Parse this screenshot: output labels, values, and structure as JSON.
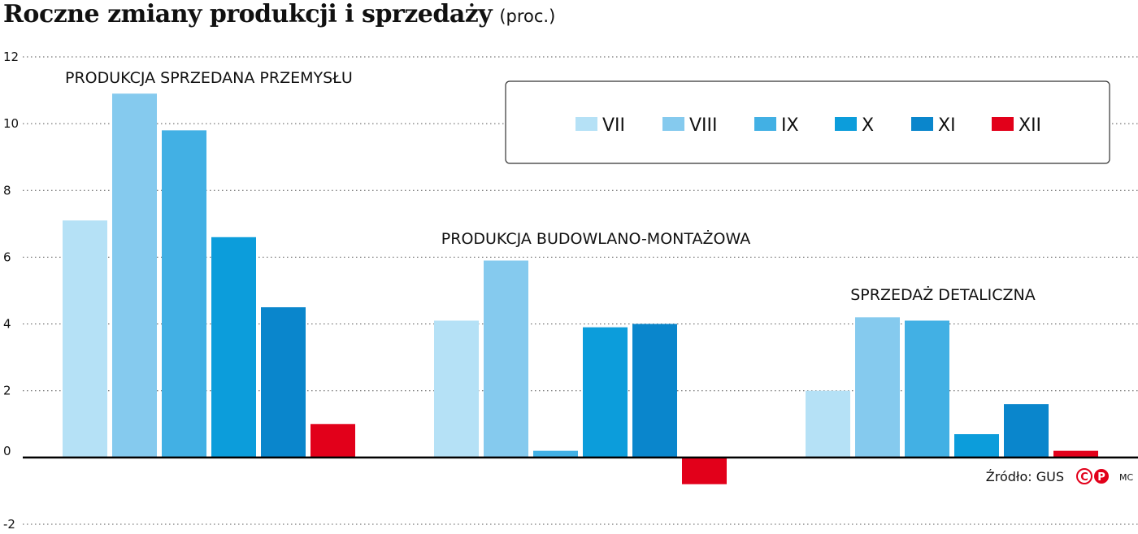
{
  "title": "Roczne zmiany produkcji i sprzedaży",
  "title_unit": "(proc.)",
  "source": "Źródło: GUS",
  "author": "MC",
  "logo_letters": [
    "C",
    "P"
  ],
  "chart_data": {
    "type": "bar",
    "categories": [
      "PRODUKCJA SPRZEDANA PRZEMYSŁU",
      "PRODUKCJA BUDOWLANO-MONTAŻOWA",
      "SPRZEDAŻ DETALICZNA"
    ],
    "series": [
      {
        "name": "VII",
        "color": "#b5e1f6",
        "values": [
          7.1,
          4.1,
          2.0
        ]
      },
      {
        "name": "VIII",
        "color": "#85caee",
        "values": [
          10.9,
          5.9,
          4.2
        ]
      },
      {
        "name": "IX",
        "color": "#42b0e4",
        "values": [
          9.8,
          0.2,
          4.1
        ]
      },
      {
        "name": "X",
        "color": "#0c9ddb",
        "values": [
          6.6,
          3.9,
          0.7
        ]
      },
      {
        "name": "XI",
        "color": "#0a86cc",
        "values": [
          4.5,
          4.0,
          1.6
        ]
      },
      {
        "name": "XII",
        "color": "#e2001a",
        "values": [
          1.0,
          -0.8,
          0.2
        ]
      }
    ],
    "ylim": [
      -2,
      12
    ],
    "yticks": [
      "12",
      "10",
      "8",
      "6",
      "4",
      "2",
      "0",
      "-2"
    ],
    "grid": true,
    "legend_position": "top-right"
  }
}
